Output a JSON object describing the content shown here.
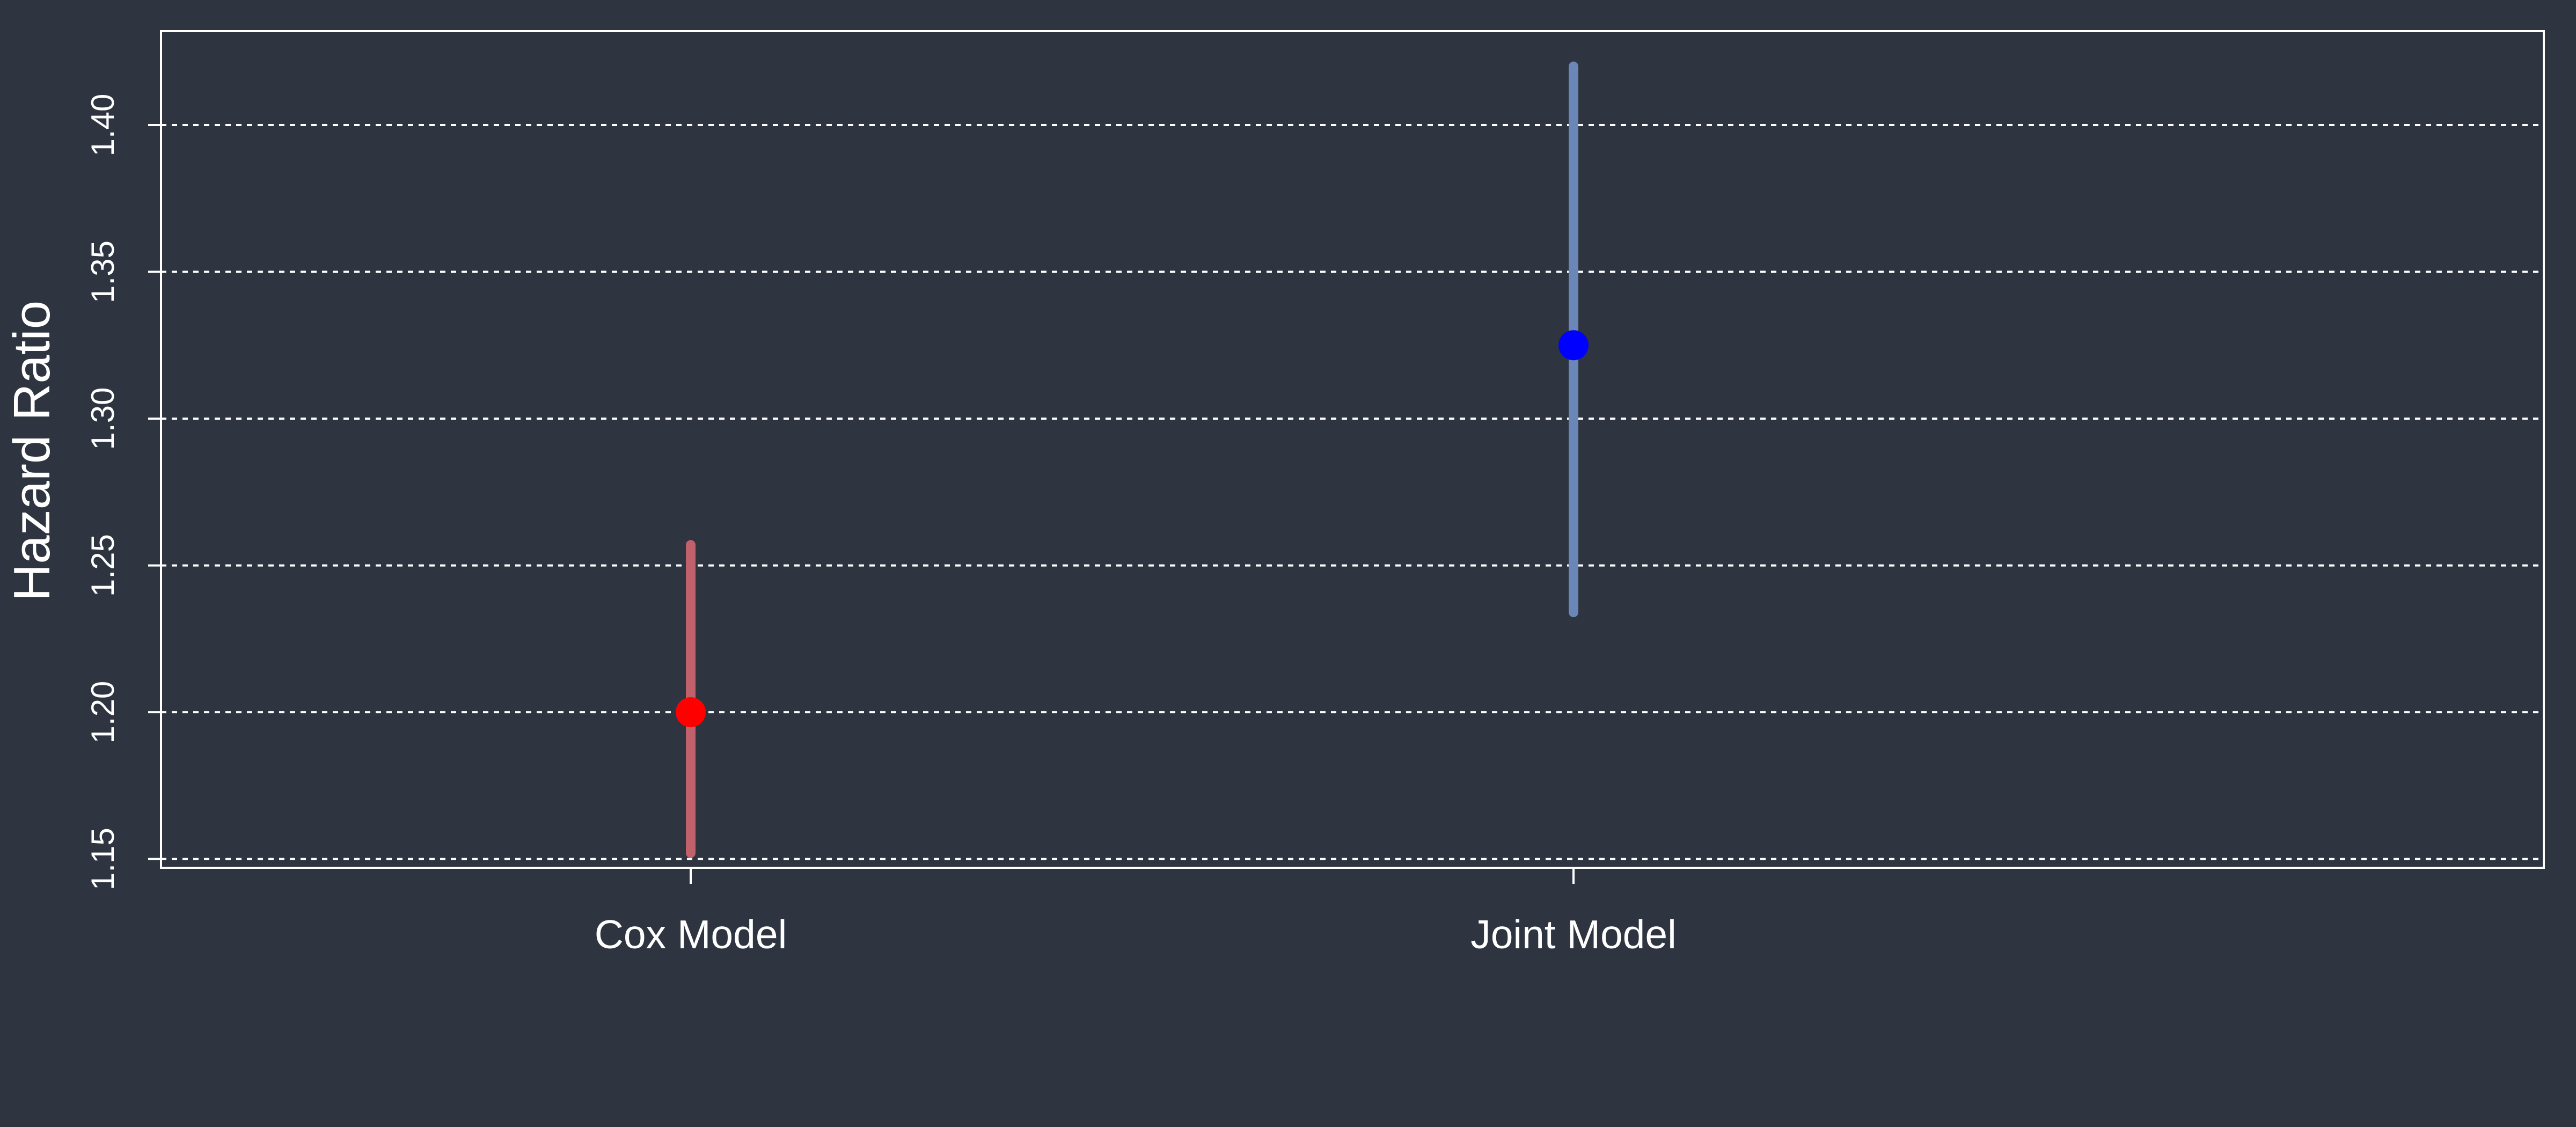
{
  "chart_data": {
    "type": "scatter",
    "title": "",
    "xlabel": "",
    "ylabel": "Hazard Ratio",
    "categories": [
      "Cox Model",
      "Joint Model"
    ],
    "ylim": [
      1.147,
      1.432
    ],
    "yticks": [
      "1.15",
      "1.20",
      "1.25",
      "1.30",
      "1.35",
      "1.40"
    ],
    "grid": true,
    "points": [
      {
        "category": "Cox Model",
        "estimate": 1.2,
        "lower": 1.152,
        "upper": 1.257,
        "point_color": "#ff0000",
        "bar_color": "#c0616c"
      },
      {
        "category": "Joint Model",
        "estimate": 1.325,
        "lower": 1.234,
        "upper": 1.42,
        "point_color": "#0000ff",
        "bar_color": "#6b87b8"
      }
    ]
  },
  "colors": {
    "background": "#2e3440",
    "axis": "#ffffff",
    "grid": "#ffffff"
  }
}
